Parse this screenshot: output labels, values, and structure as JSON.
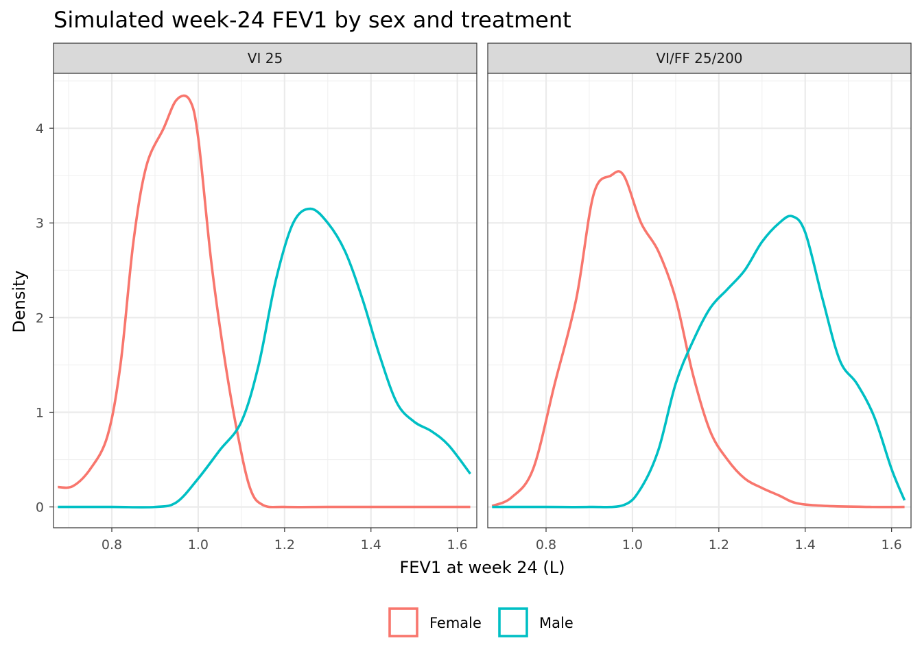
{
  "chart_data": {
    "type": "line",
    "subtype": "density",
    "title": "Simulated week-24 FEV1 by sex and treatment",
    "xlabel": "FEV1 at week 24 (L)",
    "ylabel": "Density",
    "xlim": [
      0.665,
      1.645
    ],
    "ylim": [
      -0.22,
      4.58
    ],
    "x_ticks": [
      0.8,
      1.0,
      1.2,
      1.4,
      1.6
    ],
    "x_tick_labels": [
      "0.8",
      "1.0",
      "1.2",
      "1.4",
      "1.6"
    ],
    "y_ticks": [
      0,
      1,
      2,
      3,
      4
    ],
    "y_tick_labels": [
      "0",
      "1",
      "2",
      "3",
      "4"
    ],
    "grid": true,
    "legend": {
      "position": "bottom",
      "entries": [
        {
          "label": "Female",
          "color": "#F8766D"
        },
        {
          "label": "Male",
          "color": "#00BFC4"
        }
      ]
    },
    "panels": [
      {
        "label": "VI 25",
        "series": [
          {
            "name": "Female",
            "color": "#F8766D",
            "points": [
              [
                0.675,
                0.21
              ],
              [
                0.71,
                0.22
              ],
              [
                0.75,
                0.4
              ],
              [
                0.79,
                0.75
              ],
              [
                0.82,
                1.5
              ],
              [
                0.85,
                2.8
              ],
              [
                0.88,
                3.6
              ],
              [
                0.92,
                4.0
              ],
              [
                0.95,
                4.3
              ],
              [
                0.98,
                4.3
              ],
              [
                1.0,
                3.9
              ],
              [
                1.03,
                2.6
              ],
              [
                1.06,
                1.6
              ],
              [
                1.09,
                0.8
              ],
              [
                1.12,
                0.2
              ],
              [
                1.15,
                0.02
              ],
              [
                1.2,
                0.0
              ],
              [
                1.3,
                0.0
              ],
              [
                1.4,
                0.0
              ],
              [
                1.5,
                0.0
              ],
              [
                1.63,
                0.0
              ]
            ]
          },
          {
            "name": "Male",
            "color": "#00BFC4",
            "points": [
              [
                0.675,
                0.0
              ],
              [
                0.8,
                0.0
              ],
              [
                0.9,
                0.0
              ],
              [
                0.95,
                0.05
              ],
              [
                1.0,
                0.3
              ],
              [
                1.05,
                0.6
              ],
              [
                1.1,
                0.9
              ],
              [
                1.14,
                1.5
              ],
              [
                1.18,
                2.4
              ],
              [
                1.22,
                3.0
              ],
              [
                1.26,
                3.15
              ],
              [
                1.3,
                3.0
              ],
              [
                1.34,
                2.7
              ],
              [
                1.38,
                2.2
              ],
              [
                1.42,
                1.6
              ],
              [
                1.46,
                1.1
              ],
              [
                1.5,
                0.9
              ],
              [
                1.54,
                0.8
              ],
              [
                1.58,
                0.65
              ],
              [
                1.63,
                0.35
              ]
            ]
          }
        ]
      },
      {
        "label": "VI/FF 25/200",
        "series": [
          {
            "name": "Female",
            "color": "#F8766D",
            "points": [
              [
                0.675,
                0.01
              ],
              [
                0.72,
                0.1
              ],
              [
                0.77,
                0.4
              ],
              [
                0.82,
                1.3
              ],
              [
                0.87,
                2.2
              ],
              [
                0.91,
                3.3
              ],
              [
                0.95,
                3.5
              ],
              [
                0.98,
                3.5
              ],
              [
                1.02,
                3.0
              ],
              [
                1.06,
                2.7
              ],
              [
                1.1,
                2.2
              ],
              [
                1.14,
                1.4
              ],
              [
                1.18,
                0.8
              ],
              [
                1.22,
                0.5
              ],
              [
                1.26,
                0.3
              ],
              [
                1.3,
                0.2
              ],
              [
                1.34,
                0.12
              ],
              [
                1.38,
                0.04
              ],
              [
                1.45,
                0.01
              ],
              [
                1.55,
                0.0
              ],
              [
                1.63,
                0.0
              ]
            ]
          },
          {
            "name": "Male",
            "color": "#00BFC4",
            "points": [
              [
                0.675,
                0.0
              ],
              [
                0.8,
                0.0
              ],
              [
                0.9,
                0.0
              ],
              [
                0.98,
                0.02
              ],
              [
                1.02,
                0.2
              ],
              [
                1.06,
                0.6
              ],
              [
                1.1,
                1.3
              ],
              [
                1.14,
                1.75
              ],
              [
                1.18,
                2.1
              ],
              [
                1.22,
                2.3
              ],
              [
                1.26,
                2.5
              ],
              [
                1.3,
                2.8
              ],
              [
                1.34,
                3.0
              ],
              [
                1.37,
                3.07
              ],
              [
                1.4,
                2.9
              ],
              [
                1.44,
                2.2
              ],
              [
                1.48,
                1.55
              ],
              [
                1.52,
                1.3
              ],
              [
                1.56,
                0.95
              ],
              [
                1.6,
                0.4
              ],
              [
                1.63,
                0.07
              ]
            ]
          }
        ]
      }
    ]
  }
}
